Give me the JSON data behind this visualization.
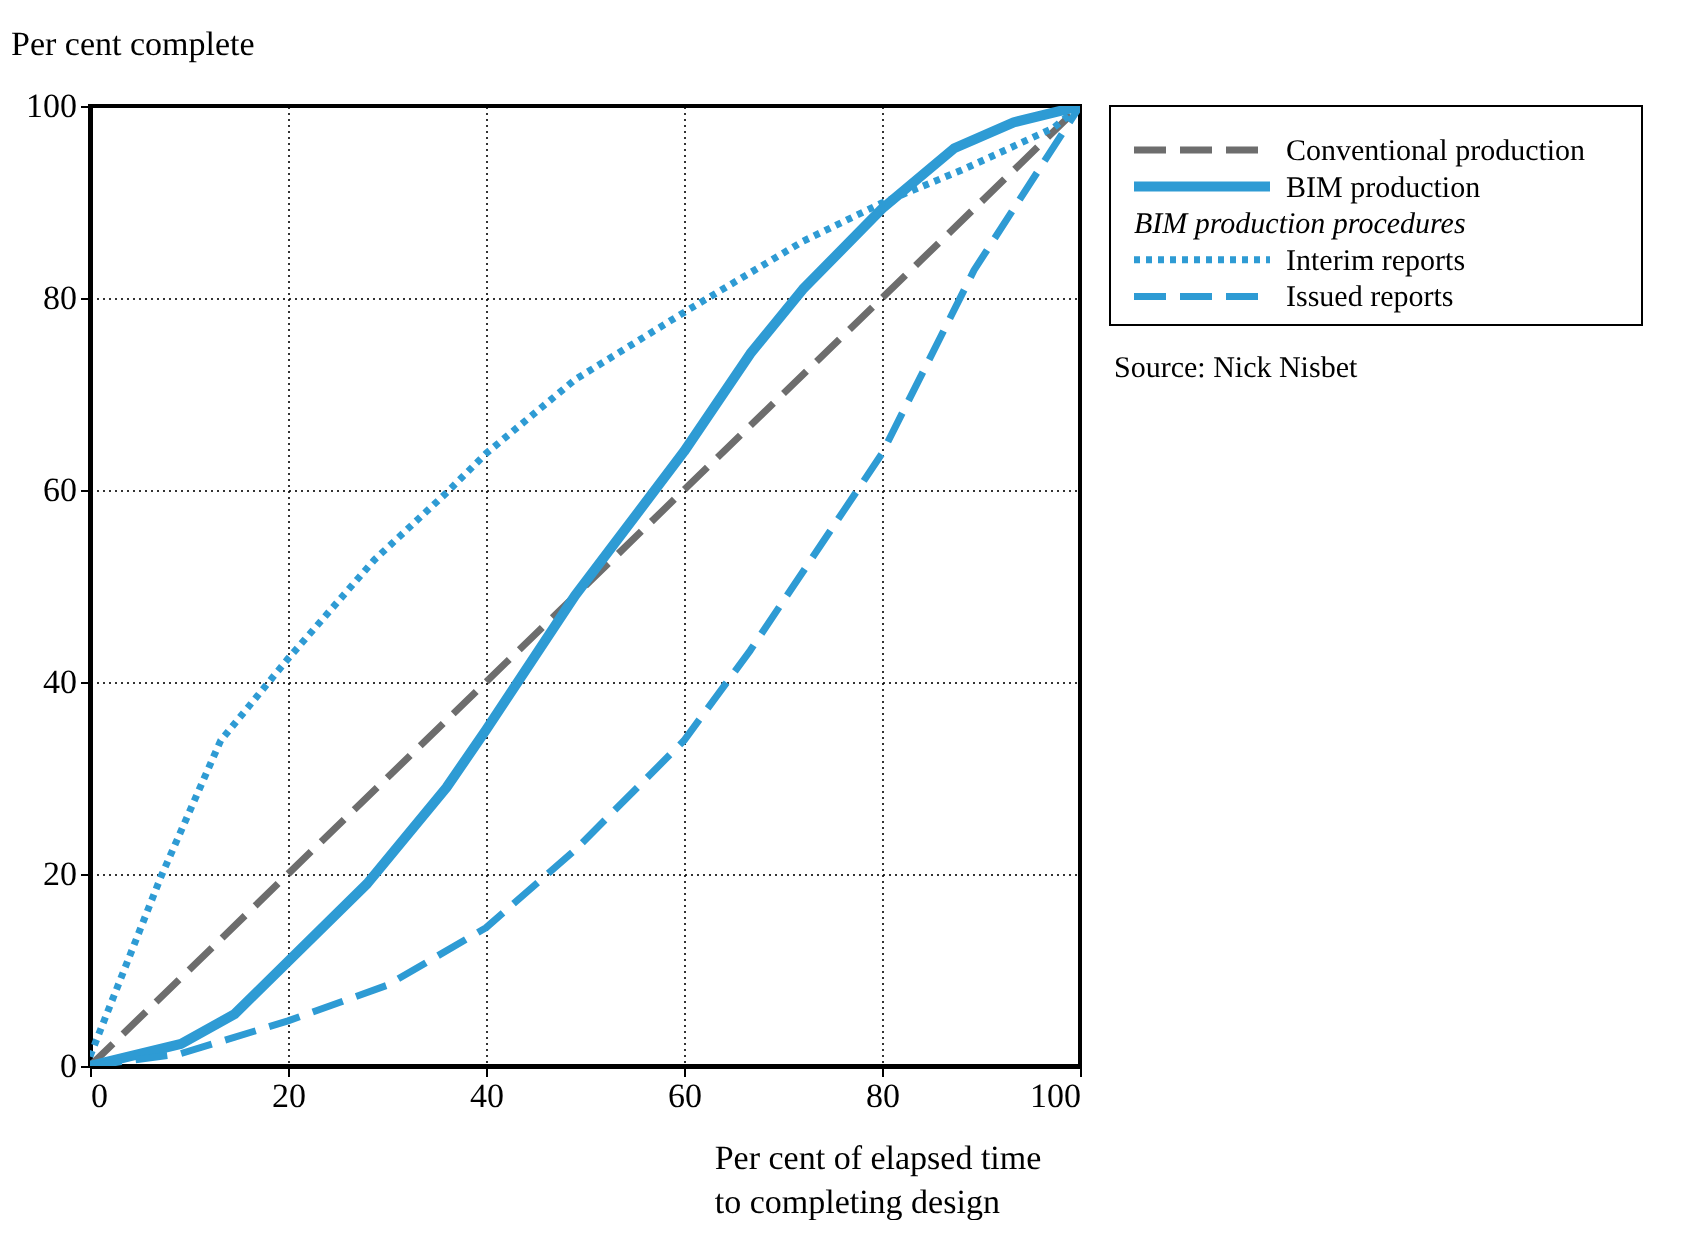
{
  "chart_data": {
    "type": "line",
    "xlabel": "Per cent of elapsed time\nto completing design",
    "ylabel": "Per cent complete",
    "xlim": [
      0,
      100
    ],
    "ylim": [
      0,
      100
    ],
    "xticks": [
      0,
      20,
      40,
      60,
      80,
      100
    ],
    "yticks": [
      0,
      20,
      40,
      60,
      80,
      100
    ],
    "grid": true,
    "legend": "right",
    "marker": "none",
    "series": [
      {
        "name": "Conventional production",
        "color": "#6d6d6d",
        "line_style": "dashed",
        "x": [
          0,
          100
        ],
        "values": [
          0,
          100
        ]
      },
      {
        "name": "BIM production",
        "color": "#2e9bd4",
        "line_style": "solid",
        "x": [
          0,
          9.2,
          14.6,
          28,
          36,
          40,
          49,
          60,
          66.7,
          72,
          80,
          87.3,
          93.3,
          100
        ],
        "values": [
          0,
          2.3,
          5.4,
          19,
          29,
          35,
          49,
          64,
          74.2,
          80.9,
          89.3,
          95.6,
          98.3,
          100
        ]
      },
      {
        "name": "Interim reports",
        "color": "#2e9bd4",
        "line_style": "dotted",
        "x": [
          0,
          7.2,
          13.2,
          19.9,
          28.7,
          36,
          40,
          49,
          60,
          72,
          80,
          88,
          97.3,
          100
        ],
        "values": [
          1,
          19.8,
          33.9,
          42.3,
          52.7,
          59.7,
          63.8,
          71.5,
          78.5,
          85.9,
          89.9,
          93.3,
          97.7,
          100
        ]
      },
      {
        "name": "Issued reports",
        "color": "#2e9bd4",
        "line_style": "dashed",
        "x": [
          0,
          9.2,
          20,
          30,
          40,
          49,
          60,
          66.7,
          80,
          89.3,
          100
        ],
        "values": [
          0,
          1.3,
          4.7,
          8.4,
          14.4,
          22.5,
          33.9,
          43.3,
          63.8,
          82.9,
          100
        ]
      }
    ],
    "annotations": [
      "BIM production procedures",
      "Source: Nick Nisbet"
    ]
  }
}
